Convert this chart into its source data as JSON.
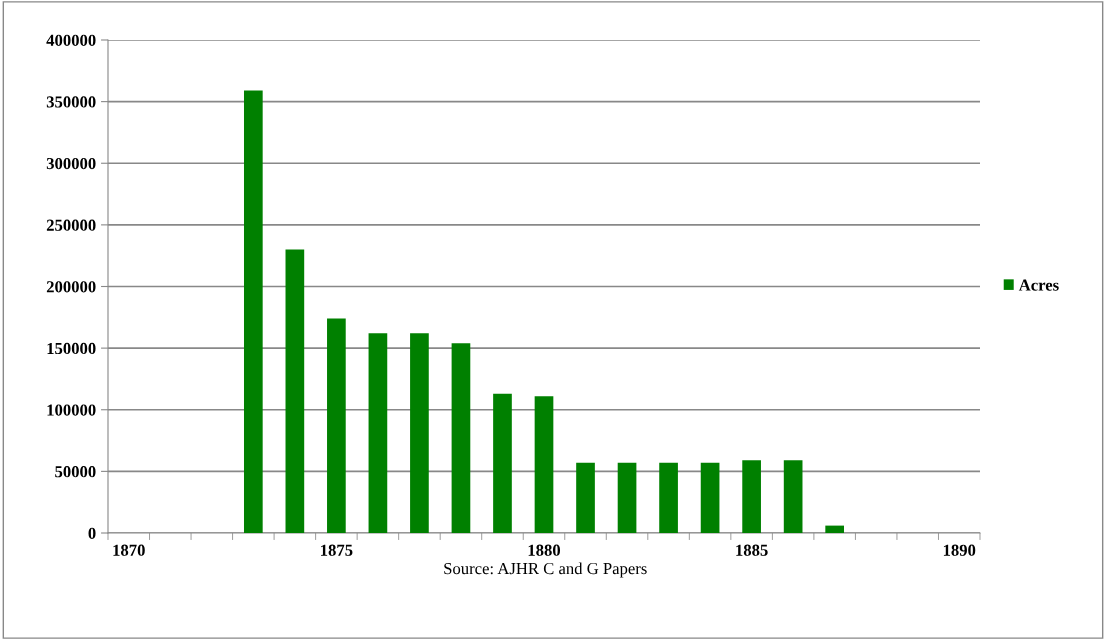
{
  "chart_data": {
    "type": "bar",
    "categories": [
      "1870",
      null,
      null,
      null,
      null,
      "1875",
      null,
      null,
      null,
      null,
      "1880",
      null,
      null,
      null,
      null,
      "1885",
      null,
      null,
      null,
      null,
      "1890"
    ],
    "series": [
      {
        "name": "Acres",
        "color": "#008000",
        "values": [
          null,
          null,
          null,
          359000,
          230000,
          174000,
          162000,
          162000,
          154000,
          113000,
          111000,
          57000,
          57000,
          57000,
          57000,
          59000,
          59000,
          6000,
          null,
          null,
          null
        ]
      }
    ],
    "ylim": [
      0,
      400000
    ],
    "yticks": [
      0,
      50000,
      100000,
      150000,
      200000,
      250000,
      300000,
      350000,
      400000
    ],
    "grid": "y",
    "legend": "right",
    "annotations": [
      "Source: AJHR C and G Papers"
    ]
  }
}
